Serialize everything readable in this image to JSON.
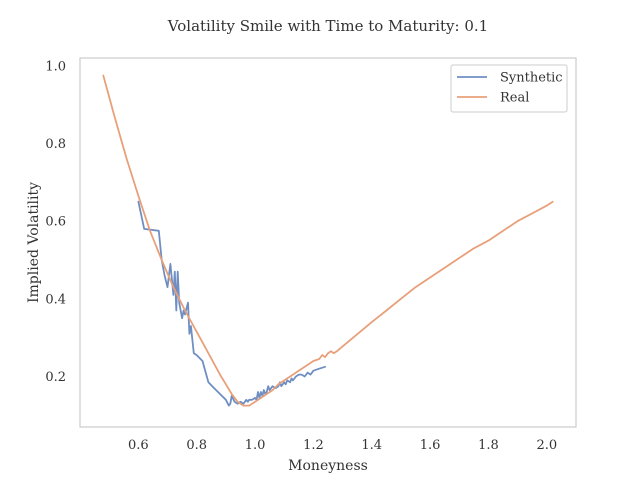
{
  "chart_data": {
    "type": "line",
    "title": "Volatility Smile with Time to Maturity: 0.1",
    "xlabel": "Moneyness",
    "ylabel": "Implied Volatility",
    "xlim": [
      0.4,
      2.1
    ],
    "ylim": [
      0.07,
      1.02
    ],
    "xticks": [
      0.6,
      0.8,
      1.0,
      1.2,
      1.4,
      1.6,
      1.8,
      2.0
    ],
    "xtick_labels": [
      "0.6",
      "0.8",
      "1.0",
      "1.2",
      "1.4",
      "1.6",
      "1.8",
      "2.0"
    ],
    "yticks": [
      0.2,
      0.4,
      0.6,
      0.8,
      1.0
    ],
    "ytick_labels": [
      "0.2",
      "0.4",
      "0.6",
      "0.8",
      "1.0"
    ],
    "grid": false,
    "legend_position": "top-right",
    "series": [
      {
        "name": "Synthetic",
        "color": "#6f8fc3",
        "x": [
          0.6,
          0.62,
          0.67,
          0.68,
          0.69,
          0.7,
          0.71,
          0.72,
          0.725,
          0.73,
          0.735,
          0.74,
          0.75,
          0.755,
          0.76,
          0.77,
          0.775,
          0.78,
          0.79,
          0.8,
          0.82,
          0.84,
          0.86,
          0.88,
          0.9,
          0.91,
          0.915,
          0.92,
          0.93,
          0.94,
          0.95,
          0.96,
          0.97,
          0.975,
          0.98,
          0.99,
          1.0,
          1.005,
          1.01,
          1.015,
          1.02,
          1.025,
          1.03,
          1.035,
          1.04,
          1.045,
          1.05,
          1.06,
          1.07,
          1.08,
          1.085,
          1.09,
          1.1,
          1.105,
          1.11,
          1.12,
          1.125,
          1.13,
          1.14,
          1.15,
          1.16,
          1.17,
          1.18,
          1.19,
          1.2,
          1.22,
          1.24
        ],
        "values": [
          0.65,
          0.58,
          0.575,
          0.5,
          0.46,
          0.43,
          0.49,
          0.41,
          0.47,
          0.37,
          0.47,
          0.39,
          0.35,
          0.37,
          0.36,
          0.39,
          0.31,
          0.33,
          0.26,
          0.255,
          0.24,
          0.185,
          0.17,
          0.155,
          0.14,
          0.125,
          0.13,
          0.15,
          0.135,
          0.13,
          0.135,
          0.13,
          0.14,
          0.135,
          0.14,
          0.14,
          0.145,
          0.14,
          0.16,
          0.145,
          0.16,
          0.15,
          0.165,
          0.155,
          0.16,
          0.175,
          0.165,
          0.175,
          0.17,
          0.175,
          0.185,
          0.175,
          0.185,
          0.18,
          0.19,
          0.185,
          0.195,
          0.19,
          0.2,
          0.205,
          0.205,
          0.2,
          0.21,
          0.205,
          0.215,
          0.22,
          0.225
        ]
      },
      {
        "name": "Real",
        "color": "#e8a07a",
        "x": [
          0.48,
          0.52,
          0.56,
          0.6,
          0.64,
          0.68,
          0.72,
          0.76,
          0.8,
          0.84,
          0.88,
          0.9,
          0.92,
          0.94,
          0.96,
          0.98,
          1.0,
          1.02,
          1.04,
          1.06,
          1.08,
          1.1,
          1.12,
          1.14,
          1.16,
          1.18,
          1.2,
          1.22,
          1.23,
          1.24,
          1.25,
          1.26,
          1.27,
          1.28,
          1.32,
          1.36,
          1.4,
          1.45,
          1.5,
          1.55,
          1.6,
          1.65,
          1.7,
          1.75,
          1.8,
          1.85,
          1.9,
          1.95,
          2.0,
          2.02
        ],
        "values": [
          0.975,
          0.865,
          0.76,
          0.665,
          0.575,
          0.5,
          0.43,
          0.37,
          0.315,
          0.26,
          0.205,
          0.18,
          0.155,
          0.135,
          0.125,
          0.125,
          0.135,
          0.145,
          0.155,
          0.165,
          0.18,
          0.19,
          0.2,
          0.21,
          0.22,
          0.23,
          0.24,
          0.245,
          0.255,
          0.25,
          0.26,
          0.265,
          0.26,
          0.265,
          0.29,
          0.315,
          0.34,
          0.37,
          0.4,
          0.43,
          0.455,
          0.48,
          0.505,
          0.53,
          0.55,
          0.575,
          0.6,
          0.62,
          0.64,
          0.65
        ]
      }
    ]
  }
}
